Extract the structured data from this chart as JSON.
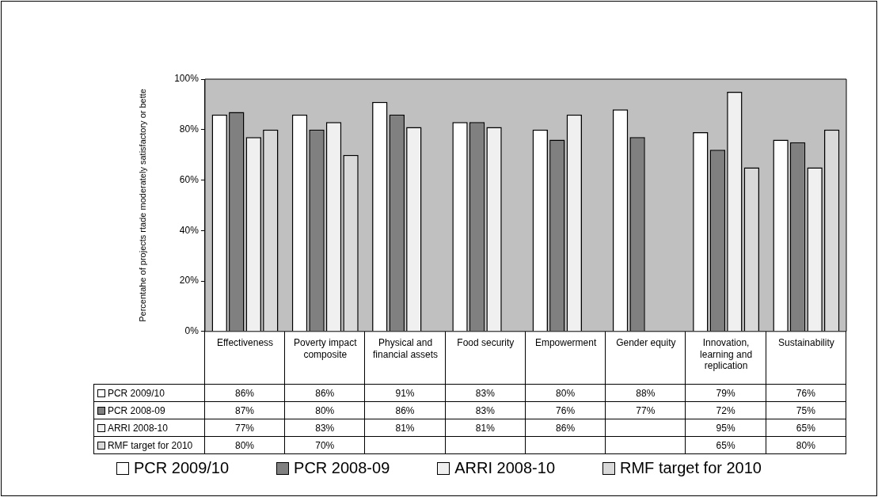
{
  "chart_data": {
    "type": "bar",
    "ylabel": "Percentahe of projects rtade moderately satisfactory or bette",
    "categories": [
      "Effectiveness",
      "Poverty impact composite",
      "Physical and financial assets",
      "Food security",
      "Empowerment",
      "Gender equity",
      "Innovation, learning and replication",
      "Sustainability"
    ],
    "series": [
      {
        "name": "PCR 2009/10",
        "color": "#ffffff",
        "values": [
          86,
          86,
          91,
          83,
          80,
          88,
          79,
          76
        ],
        "value_labels": [
          "86%",
          "86%",
          "91%",
          "83%",
          "80%",
          "88%",
          "79%",
          "76%"
        ]
      },
      {
        "name": "PCR 2008-09",
        "color": "#808080",
        "values": [
          87,
          80,
          86,
          83,
          76,
          77,
          72,
          75
        ],
        "value_labels": [
          "87%",
          "80%",
          "86%",
          "83%",
          "76%",
          "77%",
          "72%",
          "75%"
        ]
      },
      {
        "name": "ARRI 2008-10",
        "color": "#f0f0f0",
        "values": [
          77,
          83,
          81,
          81,
          86,
          null,
          95,
          65
        ],
        "value_labels": [
          "77%",
          "83%",
          "81%",
          "81%",
          "86%",
          null,
          "95%",
          "65%"
        ]
      },
      {
        "name": "RMF target for 2010",
        "color": "#d9d9d9",
        "values": [
          80,
          70,
          null,
          null,
          null,
          null,
          65,
          80
        ],
        "value_labels": [
          "80%",
          "70%",
          null,
          null,
          null,
          null,
          "65%",
          "80%"
        ]
      }
    ],
    "ylim": [
      0,
      100
    ],
    "yticks": [
      {
        "value": 0,
        "label": "0%"
      },
      {
        "value": 20,
        "label": "20%"
      },
      {
        "value": 40,
        "label": "40%"
      },
      {
        "value": 60,
        "label": "60%"
      },
      {
        "value": 80,
        "label": "80%"
      },
      {
        "value": 100,
        "label": "100%"
      }
    ],
    "grid": false,
    "legend": "bottom"
  }
}
